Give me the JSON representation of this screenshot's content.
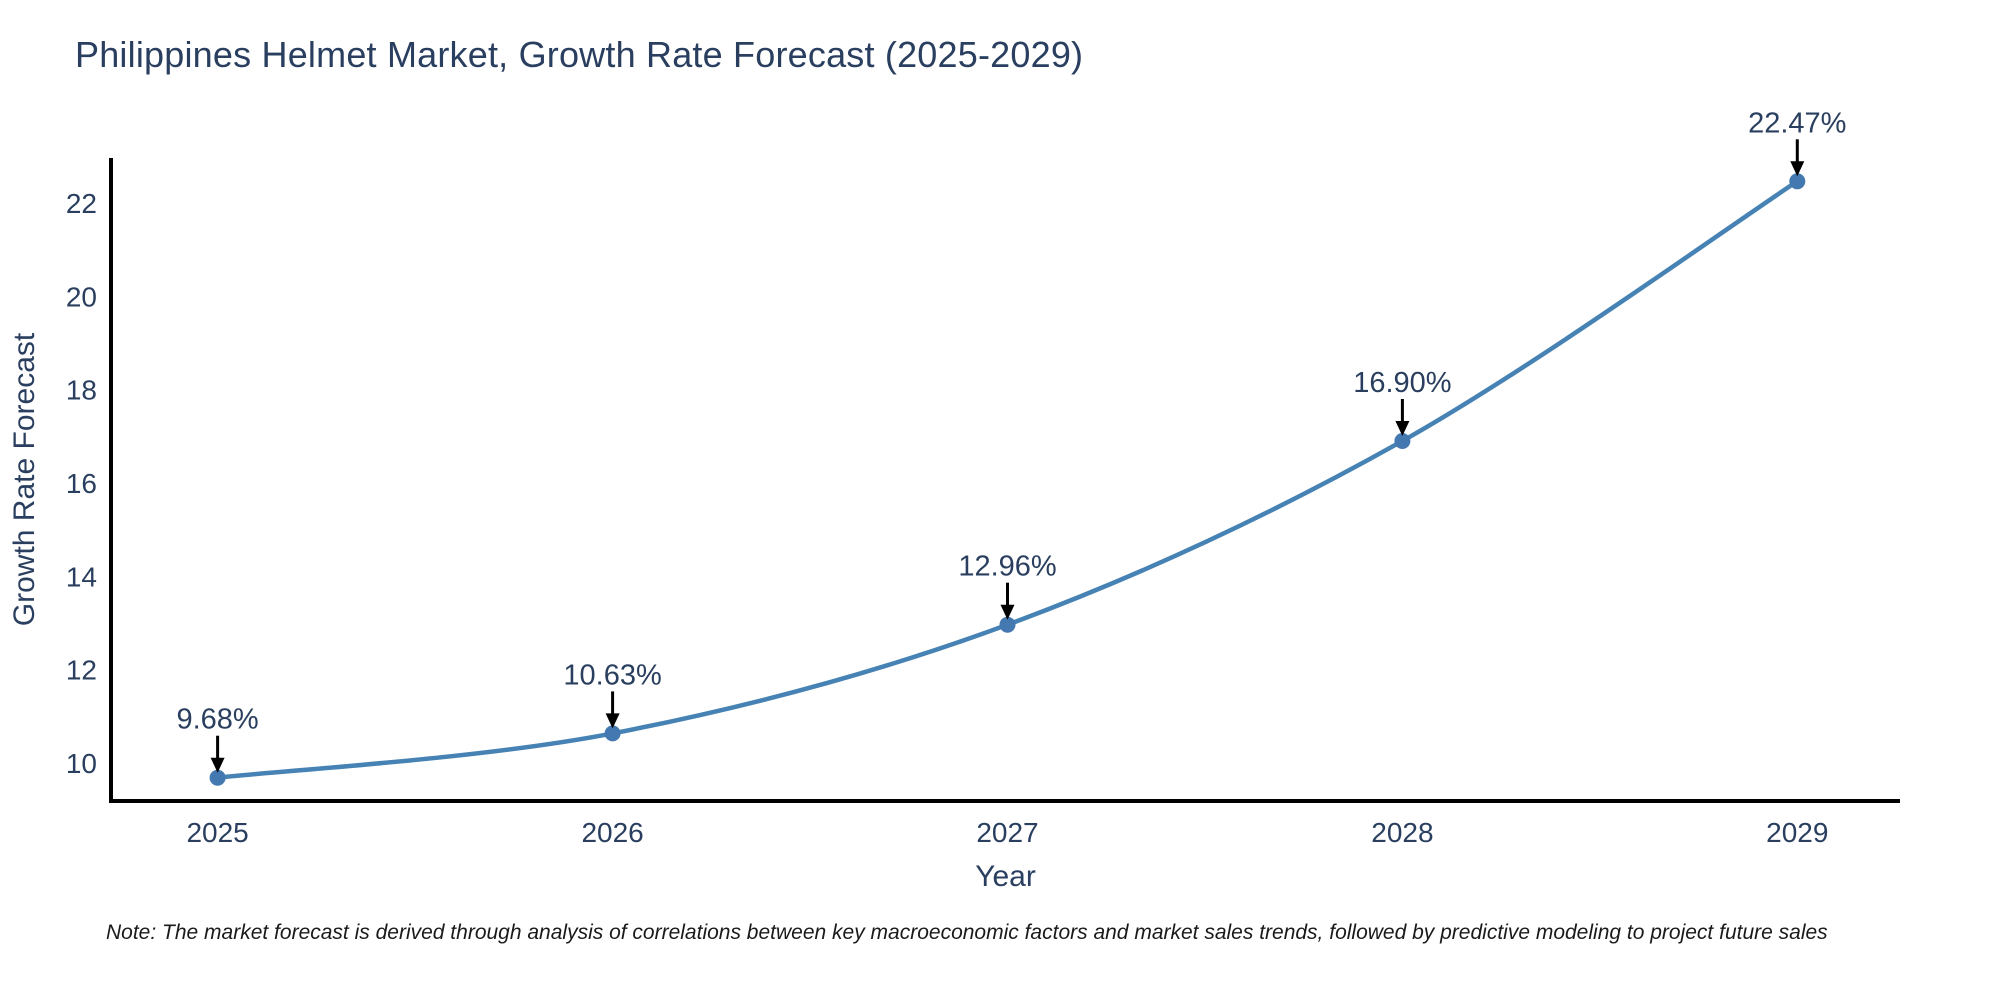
{
  "note": "Note: The market forecast is derived through analysis of correlations between key macroeconomic factors and market sales trends, followed by predictive modeling to project future sales",
  "chart_data": {
    "type": "line",
    "title": "Philippines Helmet Market, Growth Rate Forecast (2025-2029)",
    "xlabel": "Year",
    "ylabel": "Growth Rate Forecast",
    "x": [
      2025,
      2026,
      2027,
      2028,
      2029
    ],
    "xticks": [
      "2025",
      "2026",
      "2027",
      "2028",
      "2029"
    ],
    "series": [
      {
        "name": "Growth Rate Forecast",
        "values": [
          9.68,
          10.63,
          12.96,
          16.9,
          22.47
        ],
        "point_labels": [
          "9.68%",
          "10.63%",
          "12.96%",
          "16.90%",
          "22.47%"
        ]
      }
    ],
    "yticks": [
      10,
      12,
      14,
      16,
      18,
      20,
      22
    ],
    "xlim": [
      2024.73,
      2029.26
    ],
    "ylim": [
      9.18,
      22.97
    ],
    "grid": false,
    "legend": "none",
    "line_shape": "spline",
    "marker": "circle",
    "colors": {
      "line": "#4682b4",
      "marker": "#4379b0",
      "axis_line": "#000000",
      "text": "#2a3f5f",
      "annotation_text": "#2a3f5f",
      "arrow": "#000000",
      "note_text": "#1a1a1a",
      "background": "#ffffff"
    }
  }
}
